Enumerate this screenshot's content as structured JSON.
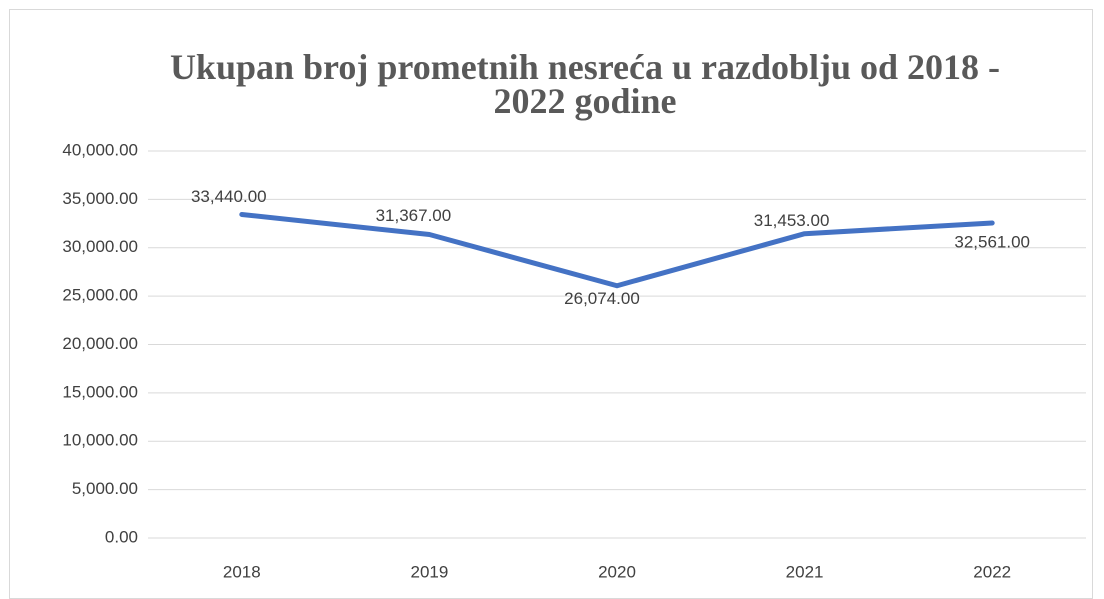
{
  "chart_data": {
    "type": "line",
    "title": "Ukupan broj prometnih nesreća u razdoblju od 2018 - 2022 godine",
    "categories": [
      "2018",
      "2019",
      "2020",
      "2021",
      "2022"
    ],
    "series": [
      {
        "name": "Ukupan broj prometnih nesreća",
        "color": "#4472c4",
        "values": [
          33440,
          31367,
          26074,
          31453,
          32561
        ],
        "value_labels": [
          "33,440.00",
          "31,367.00",
          "26,074.00",
          "31,453.00",
          "32,561.00"
        ]
      }
    ],
    "ylim": [
      0,
      40000
    ],
    "yticks": [
      {
        "value": 0,
        "label": "0.00"
      },
      {
        "value": 5000,
        "label": "5,000.00"
      },
      {
        "value": 10000,
        "label": "10,000.00"
      },
      {
        "value": 15000,
        "label": "15,000.00"
      },
      {
        "value": 20000,
        "label": "20,000.00"
      },
      {
        "value": 25000,
        "label": "25,000.00"
      },
      {
        "value": 30000,
        "label": "30,000.00"
      },
      {
        "value": 35000,
        "label": "35,000.00"
      },
      {
        "value": 40000,
        "label": "40,000.00"
      }
    ],
    "grid": true
  }
}
